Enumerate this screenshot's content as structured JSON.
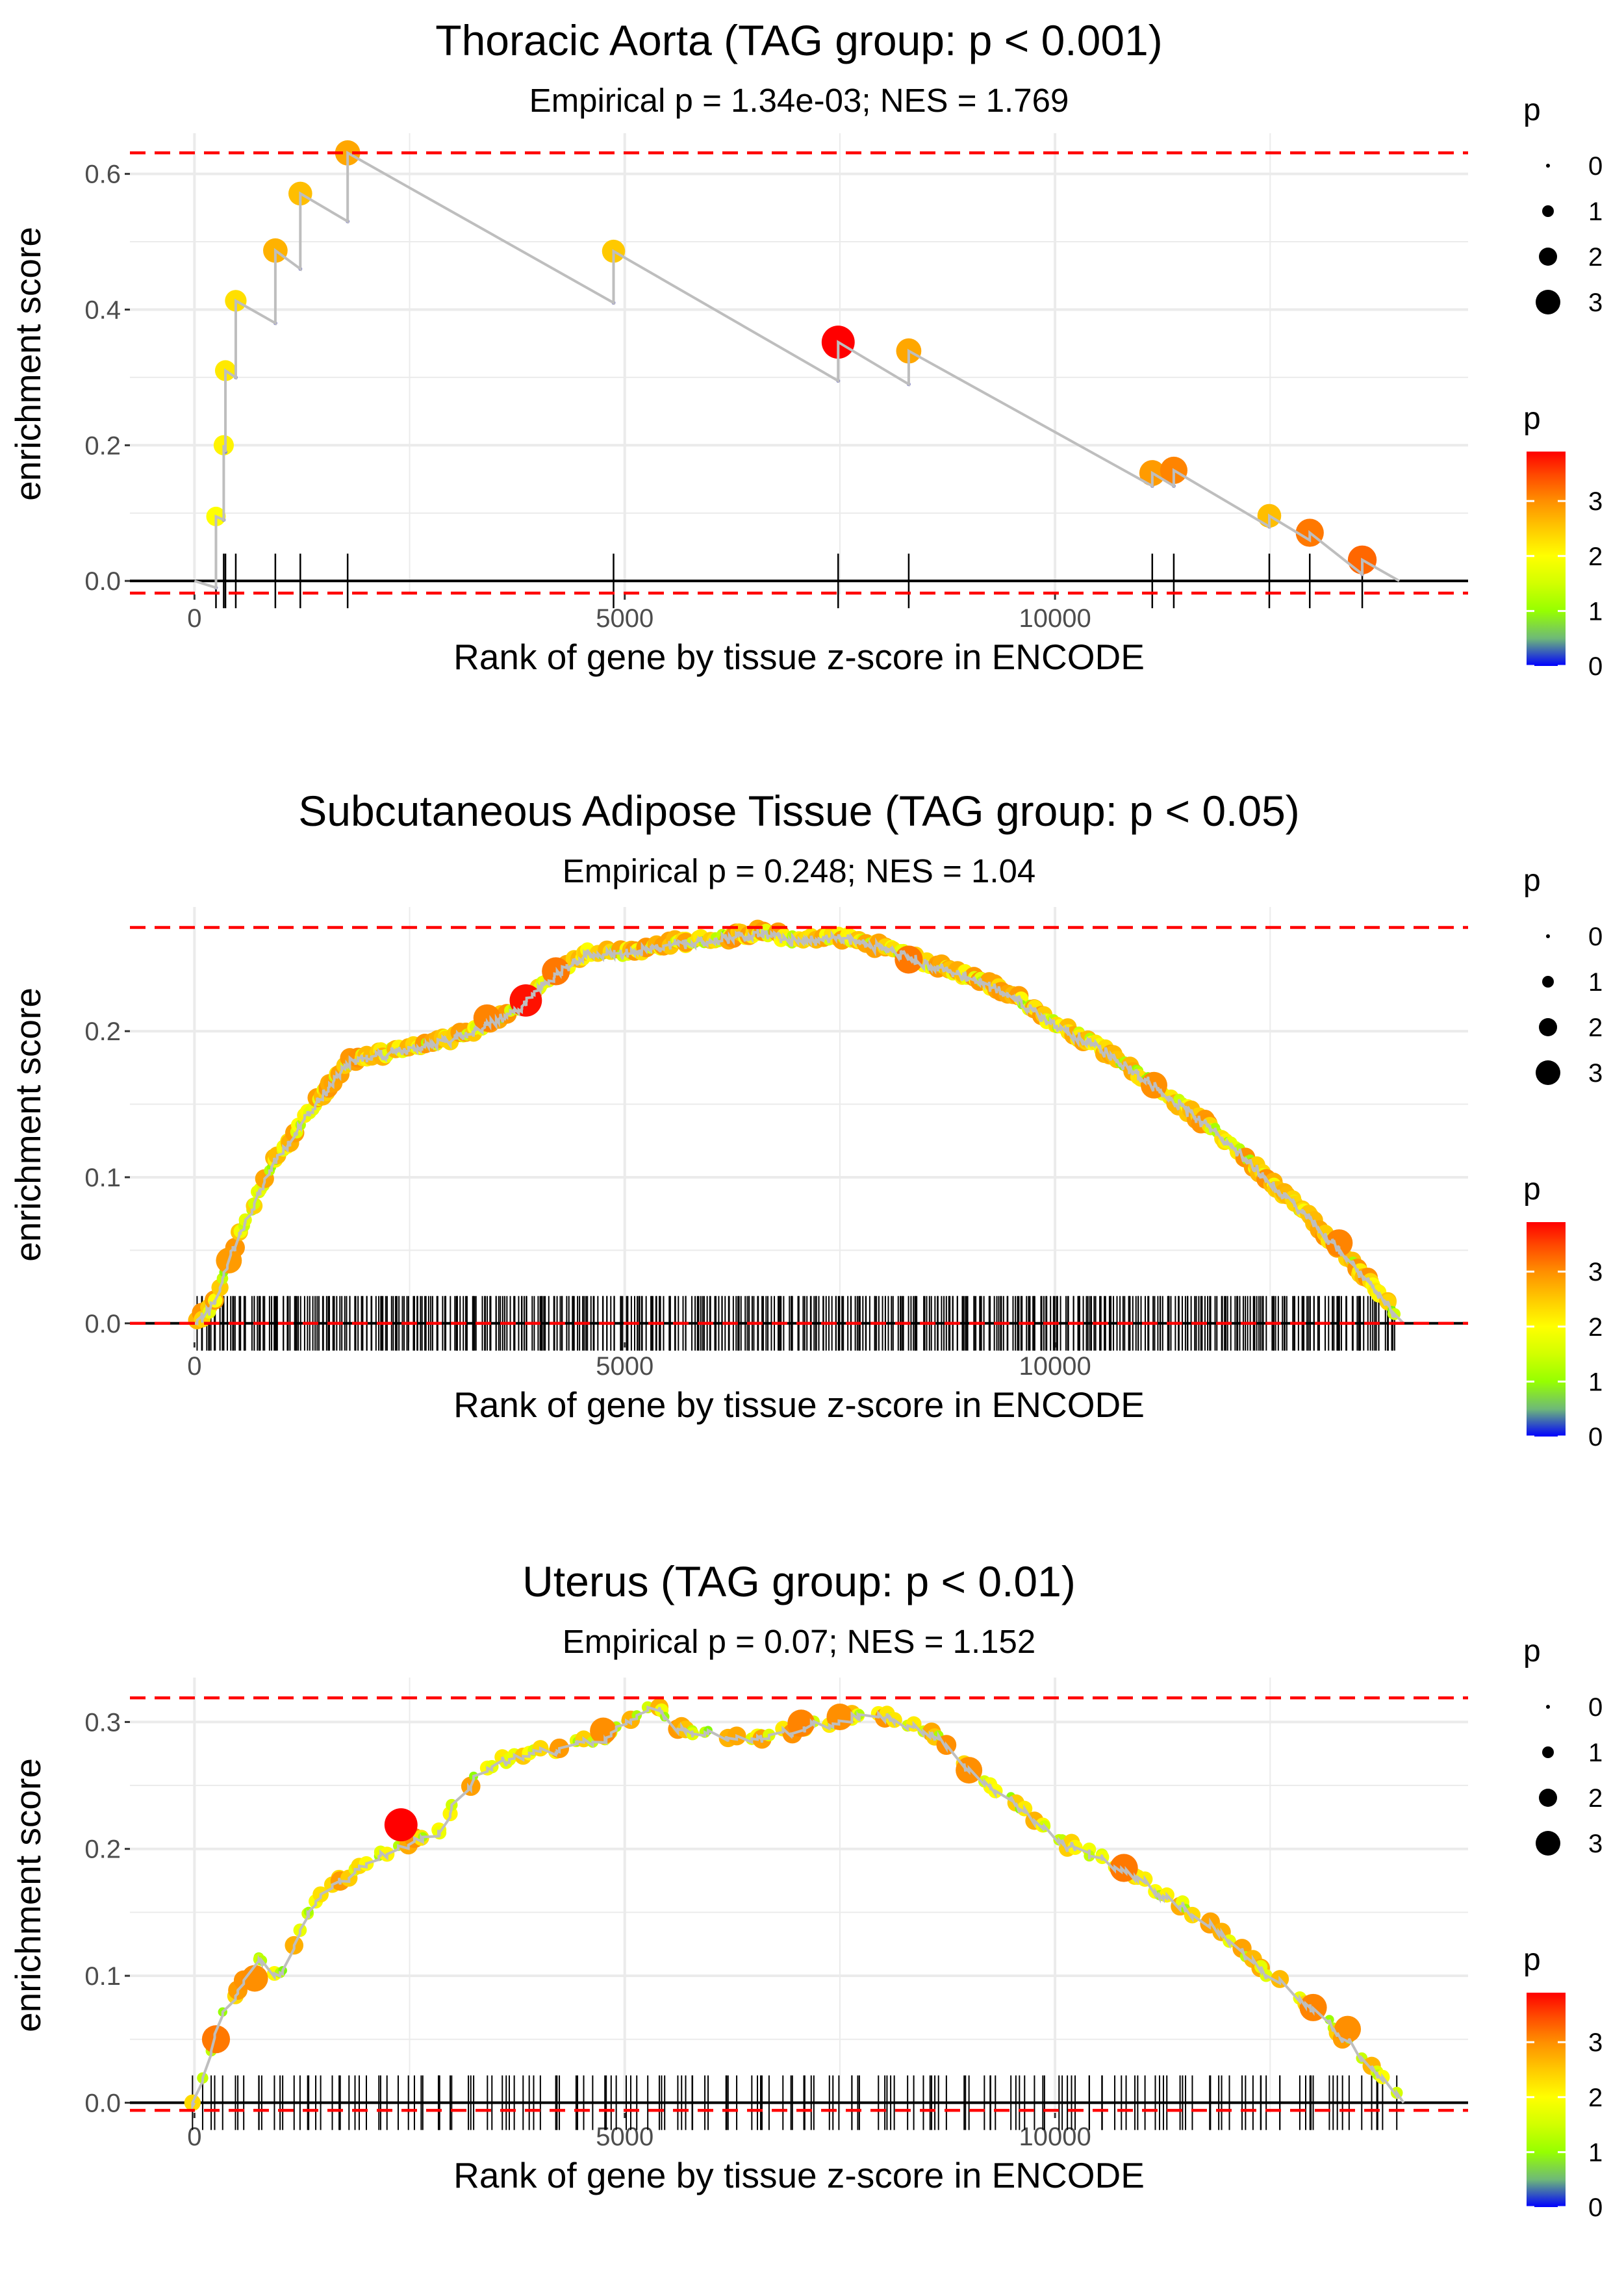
{
  "colors": {
    "grid": "#ebebeb",
    "ref_line": "#ff0000",
    "zero_line": "#000000",
    "es_line": "#bebebe",
    "rug": "#000000"
  },
  "legend": {
    "size_title": "p",
    "size_labels": [
      "0",
      "1",
      "2",
      "3"
    ],
    "color_title": "p",
    "color_labels": [
      "3",
      "2",
      "1",
      "0"
    ]
  },
  "chart_data": [
    {
      "type": "line",
      "title": "Thoracic Aorta (TAG group: p < 0.001)",
      "subtitle": "Empirical p = 1.34e-03; NES = 1.769",
      "xlabel": "Rank of gene by tissue z-score in ENCODE",
      "ylabel": "enrichment score",
      "xlim": [
        -750,
        14800
      ],
      "ylim": [
        -0.02,
        0.66
      ],
      "xticks": [
        0,
        5000,
        10000
      ],
      "xtick_labels": [
        "0",
        "5000",
        "10000"
      ],
      "yticks": [
        0.0,
        0.2,
        0.4,
        0.6
      ],
      "ytick_labels": [
        "0.0",
        "0.2",
        "0.4",
        "0.6"
      ],
      "ref_lines": [
        0.631,
        -0.018
      ],
      "start": 0,
      "end": 14000,
      "hits": [
        {
          "x": 250,
          "before": -0.01,
          "es": 0.095,
          "p": 2.0
        },
        {
          "x": 340,
          "before": 0.09,
          "es": 0.2,
          "p": 2.1
        },
        {
          "x": 360,
          "before": 0.19,
          "es": 0.31,
          "p": 2.2
        },
        {
          "x": 480,
          "before": 0.3,
          "es": 0.413,
          "p": 2.3
        },
        {
          "x": 940,
          "before": 0.38,
          "es": 0.487,
          "p": 2.7
        },
        {
          "x": 1230,
          "before": 0.46,
          "es": 0.571,
          "p": 2.6
        },
        {
          "x": 1780,
          "before": 0.53,
          "es": 0.631,
          "p": 2.8
        },
        {
          "x": 4870,
          "before": 0.41,
          "es": 0.486,
          "p": 2.5
        },
        {
          "x": 7480,
          "before": 0.295,
          "es": 0.352,
          "p": 3.9
        },
        {
          "x": 8300,
          "before": 0.29,
          "es": 0.339,
          "p": 2.8
        },
        {
          "x": 11130,
          "before": 0.14,
          "es": 0.159,
          "p": 2.9
        },
        {
          "x": 11380,
          "before": 0.14,
          "es": 0.163,
          "p": 3.1
        },
        {
          "x": 12490,
          "before": 0.08,
          "es": 0.096,
          "p": 2.6
        },
        {
          "x": 12960,
          "before": 0.06,
          "es": 0.071,
          "p": 3.2
        },
        {
          "x": 13570,
          "before": 0.01,
          "es": 0.031,
          "p": 3.3
        }
      ]
    },
    {
      "type": "line",
      "title": "Subcutaneous Adipose Tissue (TAG group: p < 0.05)",
      "subtitle": "Empirical p = 0.248; NES = 1.04",
      "xlabel": "Rank of gene by tissue z-score in ENCODE",
      "ylabel": "enrichment score",
      "xlim": [
        -750,
        14800
      ],
      "ylim": [
        -0.013,
        0.285
      ],
      "xticks": [
        0,
        5000,
        10000
      ],
      "xtick_labels": [
        "0",
        "5000",
        "10000"
      ],
      "yticks": [
        0.0,
        0.1,
        0.2
      ],
      "ytick_labels": [
        "0.0",
        "0.1",
        "0.2"
      ],
      "ref_lines": [
        0.271,
        0.0
      ],
      "curve": [
        [
          0,
          0.0
        ],
        [
          250,
          0.015
        ],
        [
          400,
          0.045
        ],
        [
          600,
          0.07
        ],
        [
          900,
          0.11
        ],
        [
          1100,
          0.125
        ],
        [
          1400,
          0.15
        ],
        [
          1800,
          0.18
        ],
        [
          2200,
          0.185
        ],
        [
          2600,
          0.19
        ],
        [
          3000,
          0.195
        ],
        [
          3400,
          0.205
        ],
        [
          3800,
          0.218
        ],
        [
          4200,
          0.24
        ],
        [
          4600,
          0.255
        ],
        [
          5000,
          0.254
        ],
        [
          5500,
          0.26
        ],
        [
          6000,
          0.263
        ],
        [
          6600,
          0.268
        ],
        [
          7000,
          0.262
        ],
        [
          7500,
          0.265
        ],
        [
          8000,
          0.258
        ],
        [
          8500,
          0.247
        ],
        [
          9000,
          0.238
        ],
        [
          9500,
          0.225
        ],
        [
          10000,
          0.205
        ],
        [
          10500,
          0.19
        ],
        [
          11000,
          0.17
        ],
        [
          11500,
          0.148
        ],
        [
          12000,
          0.125
        ],
        [
          12500,
          0.098
        ],
        [
          13000,
          0.07
        ],
        [
          13400,
          0.045
        ],
        [
          13800,
          0.018
        ],
        [
          14050,
          0.0
        ]
      ],
      "highlights": [
        {
          "x": 3850,
          "es": 0.221,
          "p": 3.8
        },
        {
          "x": 3400,
          "es": 0.209,
          "p": 3.1
        },
        {
          "x": 4200,
          "es": 0.241,
          "p": 3.2
        },
        {
          "x": 8300,
          "es": 0.249,
          "p": 3.2
        },
        {
          "x": 11150,
          "es": 0.163,
          "p": 3.0
        },
        {
          "x": 13300,
          "es": 0.055,
          "p": 3.1
        },
        {
          "x": 400,
          "es": 0.043,
          "p": 2.9
        }
      ],
      "rug": {
        "from": 50,
        "to": 14000,
        "count": 520
      }
    },
    {
      "type": "line",
      "title": "Uterus (TAG group: p < 0.01)",
      "subtitle": "Empirical p = 0.07; NES = 1.152",
      "xlabel": "Rank of gene by tissue z-score in ENCODE",
      "ylabel": "enrichment score",
      "xlim": [
        -750,
        14800
      ],
      "ylim": [
        -0.008,
        0.335
      ],
      "xticks": [
        0,
        5000,
        10000
      ],
      "xtick_labels": [
        "0",
        "5000",
        "10000"
      ],
      "yticks": [
        0.0,
        0.1,
        0.2,
        0.3
      ],
      "ytick_labels": [
        "0.0",
        "0.1",
        "0.2",
        "0.3"
      ],
      "ref_lines": [
        0.319,
        -0.006
      ],
      "curve": [
        [
          0,
          0.0
        ],
        [
          150,
          0.03
        ],
        [
          300,
          0.07
        ],
        [
          500,
          0.085
        ],
        [
          700,
          0.12
        ],
        [
          900,
          0.1
        ],
        [
          1100,
          0.11
        ],
        [
          1300,
          0.15
        ],
        [
          1600,
          0.17
        ],
        [
          2000,
          0.19
        ],
        [
          2400,
          0.205
        ],
        [
          2800,
          0.21
        ],
        [
          3100,
          0.245
        ],
        [
          3400,
          0.265
        ],
        [
          3800,
          0.275
        ],
        [
          4300,
          0.28
        ],
        [
          4800,
          0.29
        ],
        [
          5200,
          0.305
        ],
        [
          5300,
          0.319
        ],
        [
          5600,
          0.295
        ],
        [
          6000,
          0.29
        ],
        [
          6500,
          0.285
        ],
        [
          7000,
          0.295
        ],
        [
          7500,
          0.302
        ],
        [
          7900,
          0.308
        ],
        [
          8400,
          0.295
        ],
        [
          8600,
          0.29
        ],
        [
          9000,
          0.262
        ],
        [
          9500,
          0.24
        ],
        [
          10000,
          0.207
        ],
        [
          10500,
          0.195
        ],
        [
          11000,
          0.175
        ],
        [
          11500,
          0.155
        ],
        [
          12000,
          0.13
        ],
        [
          12500,
          0.1
        ],
        [
          13000,
          0.075
        ],
        [
          13500,
          0.042
        ],
        [
          14000,
          0.005
        ]
      ],
      "highlights": [
        {
          "x": 2400,
          "es": 0.219,
          "p": 3.9
        },
        {
          "x": 250,
          "es": 0.05,
          "p": 3.2
        },
        {
          "x": 700,
          "es": 0.098,
          "p": 3.0
        },
        {
          "x": 4750,
          "es": 0.293,
          "p": 3.0
        },
        {
          "x": 7050,
          "es": 0.299,
          "p": 3.1
        },
        {
          "x": 7500,
          "es": 0.304,
          "p": 3.0
        },
        {
          "x": 9000,
          "es": 0.262,
          "p": 3.0
        },
        {
          "x": 10800,
          "es": 0.185,
          "p": 3.2
        },
        {
          "x": 13000,
          "es": 0.075,
          "p": 3.1
        },
        {
          "x": 13400,
          "es": 0.058,
          "p": 3.0
        }
      ],
      "rug": {
        "from": 50,
        "to": 14000,
        "count": 180
      }
    }
  ]
}
